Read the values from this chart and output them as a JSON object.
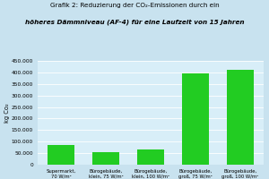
{
  "categories": [
    "Supermarkt,\n70 W/m²",
    "Bürogebäude,\nklein, 75 W/m²",
    "Bürogebäude,\nklein, 100 W/m²",
    "Bürogebäude,\ngroß, 75 W/m²",
    "Bürogebäude,\ngroß, 100 W/m²"
  ],
  "values": [
    87000,
    55000,
    65000,
    395000,
    410000
  ],
  "bar_color": "#22cc22",
  "background_color": "#c8e2ef",
  "plot_bg_color": "#d8eef8",
  "title_line1": "Grafik 2: Reduzierung der CO₂-Emissionen durch ein",
  "title_line2_pre": "höheres Dämmniveau ",
  "title_line2_italic": "(AF-4)",
  "title_line2_post": " für eine Laufzeit von 15 Jahren",
  "ylabel": "kg Co₂",
  "ylim": [
    0,
    450000
  ],
  "yticks": [
    0,
    50000,
    100000,
    150000,
    200000,
    250000,
    300000,
    350000,
    400000,
    450000
  ],
  "ytick_labels": [
    "0",
    "50.000",
    "100.000",
    "150.000",
    "200.000",
    "250.000",
    "300.000",
    "350.000",
    "400.000",
    "450.000"
  ]
}
